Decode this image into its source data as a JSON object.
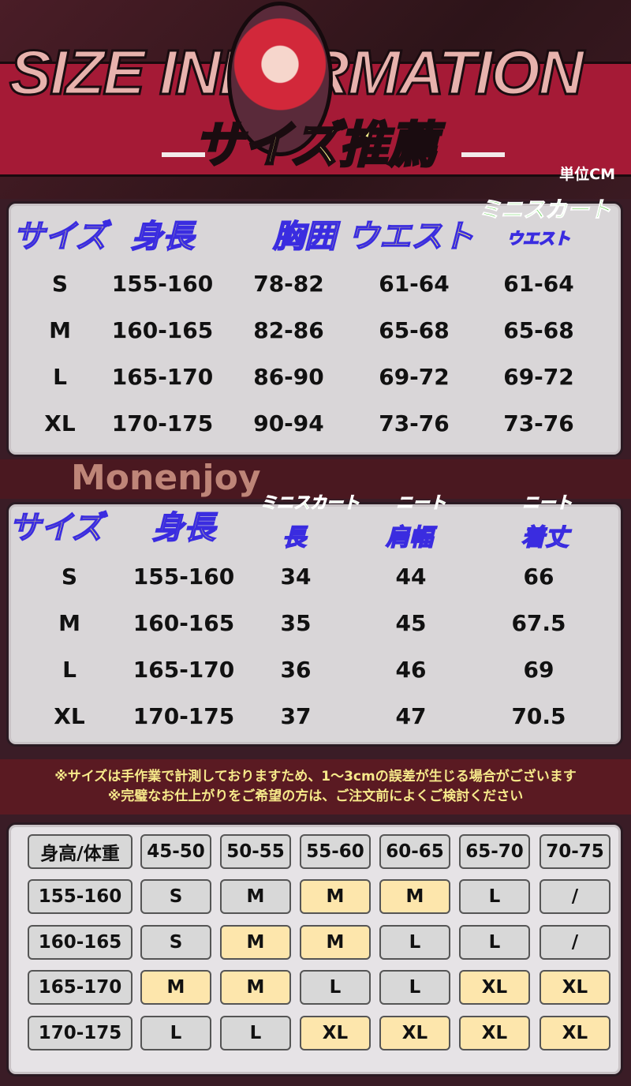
{
  "header": {
    "title": "SIZE INFORMATION",
    "subtitle": "サイズ推薦",
    "unit": "単位CM"
  },
  "table1": {
    "green_header": "ミニスカート",
    "headers": [
      "サイズ",
      "身長",
      "胸囲",
      "ウエスト",
      "ウエスト"
    ],
    "rows": [
      [
        "S",
        "155-160",
        "78-82",
        "61-64",
        "61-64"
      ],
      [
        "M",
        "160-165",
        "82-86",
        "65-68",
        "65-68"
      ],
      [
        "L",
        "165-170",
        "86-90",
        "69-72",
        "69-72"
      ],
      [
        "XL",
        "170-175",
        "90-94",
        "73-76",
        "73-76"
      ]
    ]
  },
  "table2": {
    "green_headers": [
      "ミニスカート",
      "ニート",
      "ニート"
    ],
    "headers": [
      "サイズ",
      "身長",
      "長",
      "肩幅",
      "着丈"
    ],
    "rows": [
      [
        "S",
        "155-160",
        "34",
        "44",
        "66"
      ],
      [
        "M",
        "160-165",
        "35",
        "45",
        "67.5"
      ],
      [
        "L",
        "165-170",
        "36",
        "46",
        "69"
      ],
      [
        "XL",
        "170-175",
        "37",
        "47",
        "70.5"
      ]
    ],
    "watermark": "Monenjoy"
  },
  "notice": [
    "※サイズは手作業で計測しておりますため、1〜3cmの誤差が生じる場合がございます",
    "※完璧なお仕上がりをご希望の方は、ご注文前によくご検討ください"
  ],
  "table3": {
    "corner": "身高/体重",
    "weights": [
      "45-50",
      "50-55",
      "55-60",
      "60-65",
      "65-70",
      "70-75"
    ],
    "rows": [
      {
        "height": "155-160",
        "sizes": [
          "S",
          "M",
          "M",
          "M",
          "L",
          "/"
        ],
        "highlight": [
          0,
          0,
          1,
          1,
          0,
          0
        ]
      },
      {
        "height": "160-165",
        "sizes": [
          "S",
          "M",
          "M",
          "L",
          "L",
          "/"
        ],
        "highlight": [
          0,
          1,
          1,
          0,
          0,
          0
        ]
      },
      {
        "height": "165-170",
        "sizes": [
          "M",
          "M",
          "L",
          "L",
          "XL",
          "XL"
        ],
        "highlight": [
          1,
          1,
          0,
          0,
          1,
          1
        ]
      },
      {
        "height": "170-175",
        "sizes": [
          "L",
          "L",
          "XL",
          "XL",
          "XL",
          "XL"
        ],
        "highlight": [
          0,
          0,
          1,
          1,
          1,
          1
        ]
      }
    ]
  },
  "colors": {
    "highlight": "#fde6ac",
    "cell": "#d8d8d8",
    "band": "#a51a36",
    "title_yellow": "#fbf28d"
  }
}
